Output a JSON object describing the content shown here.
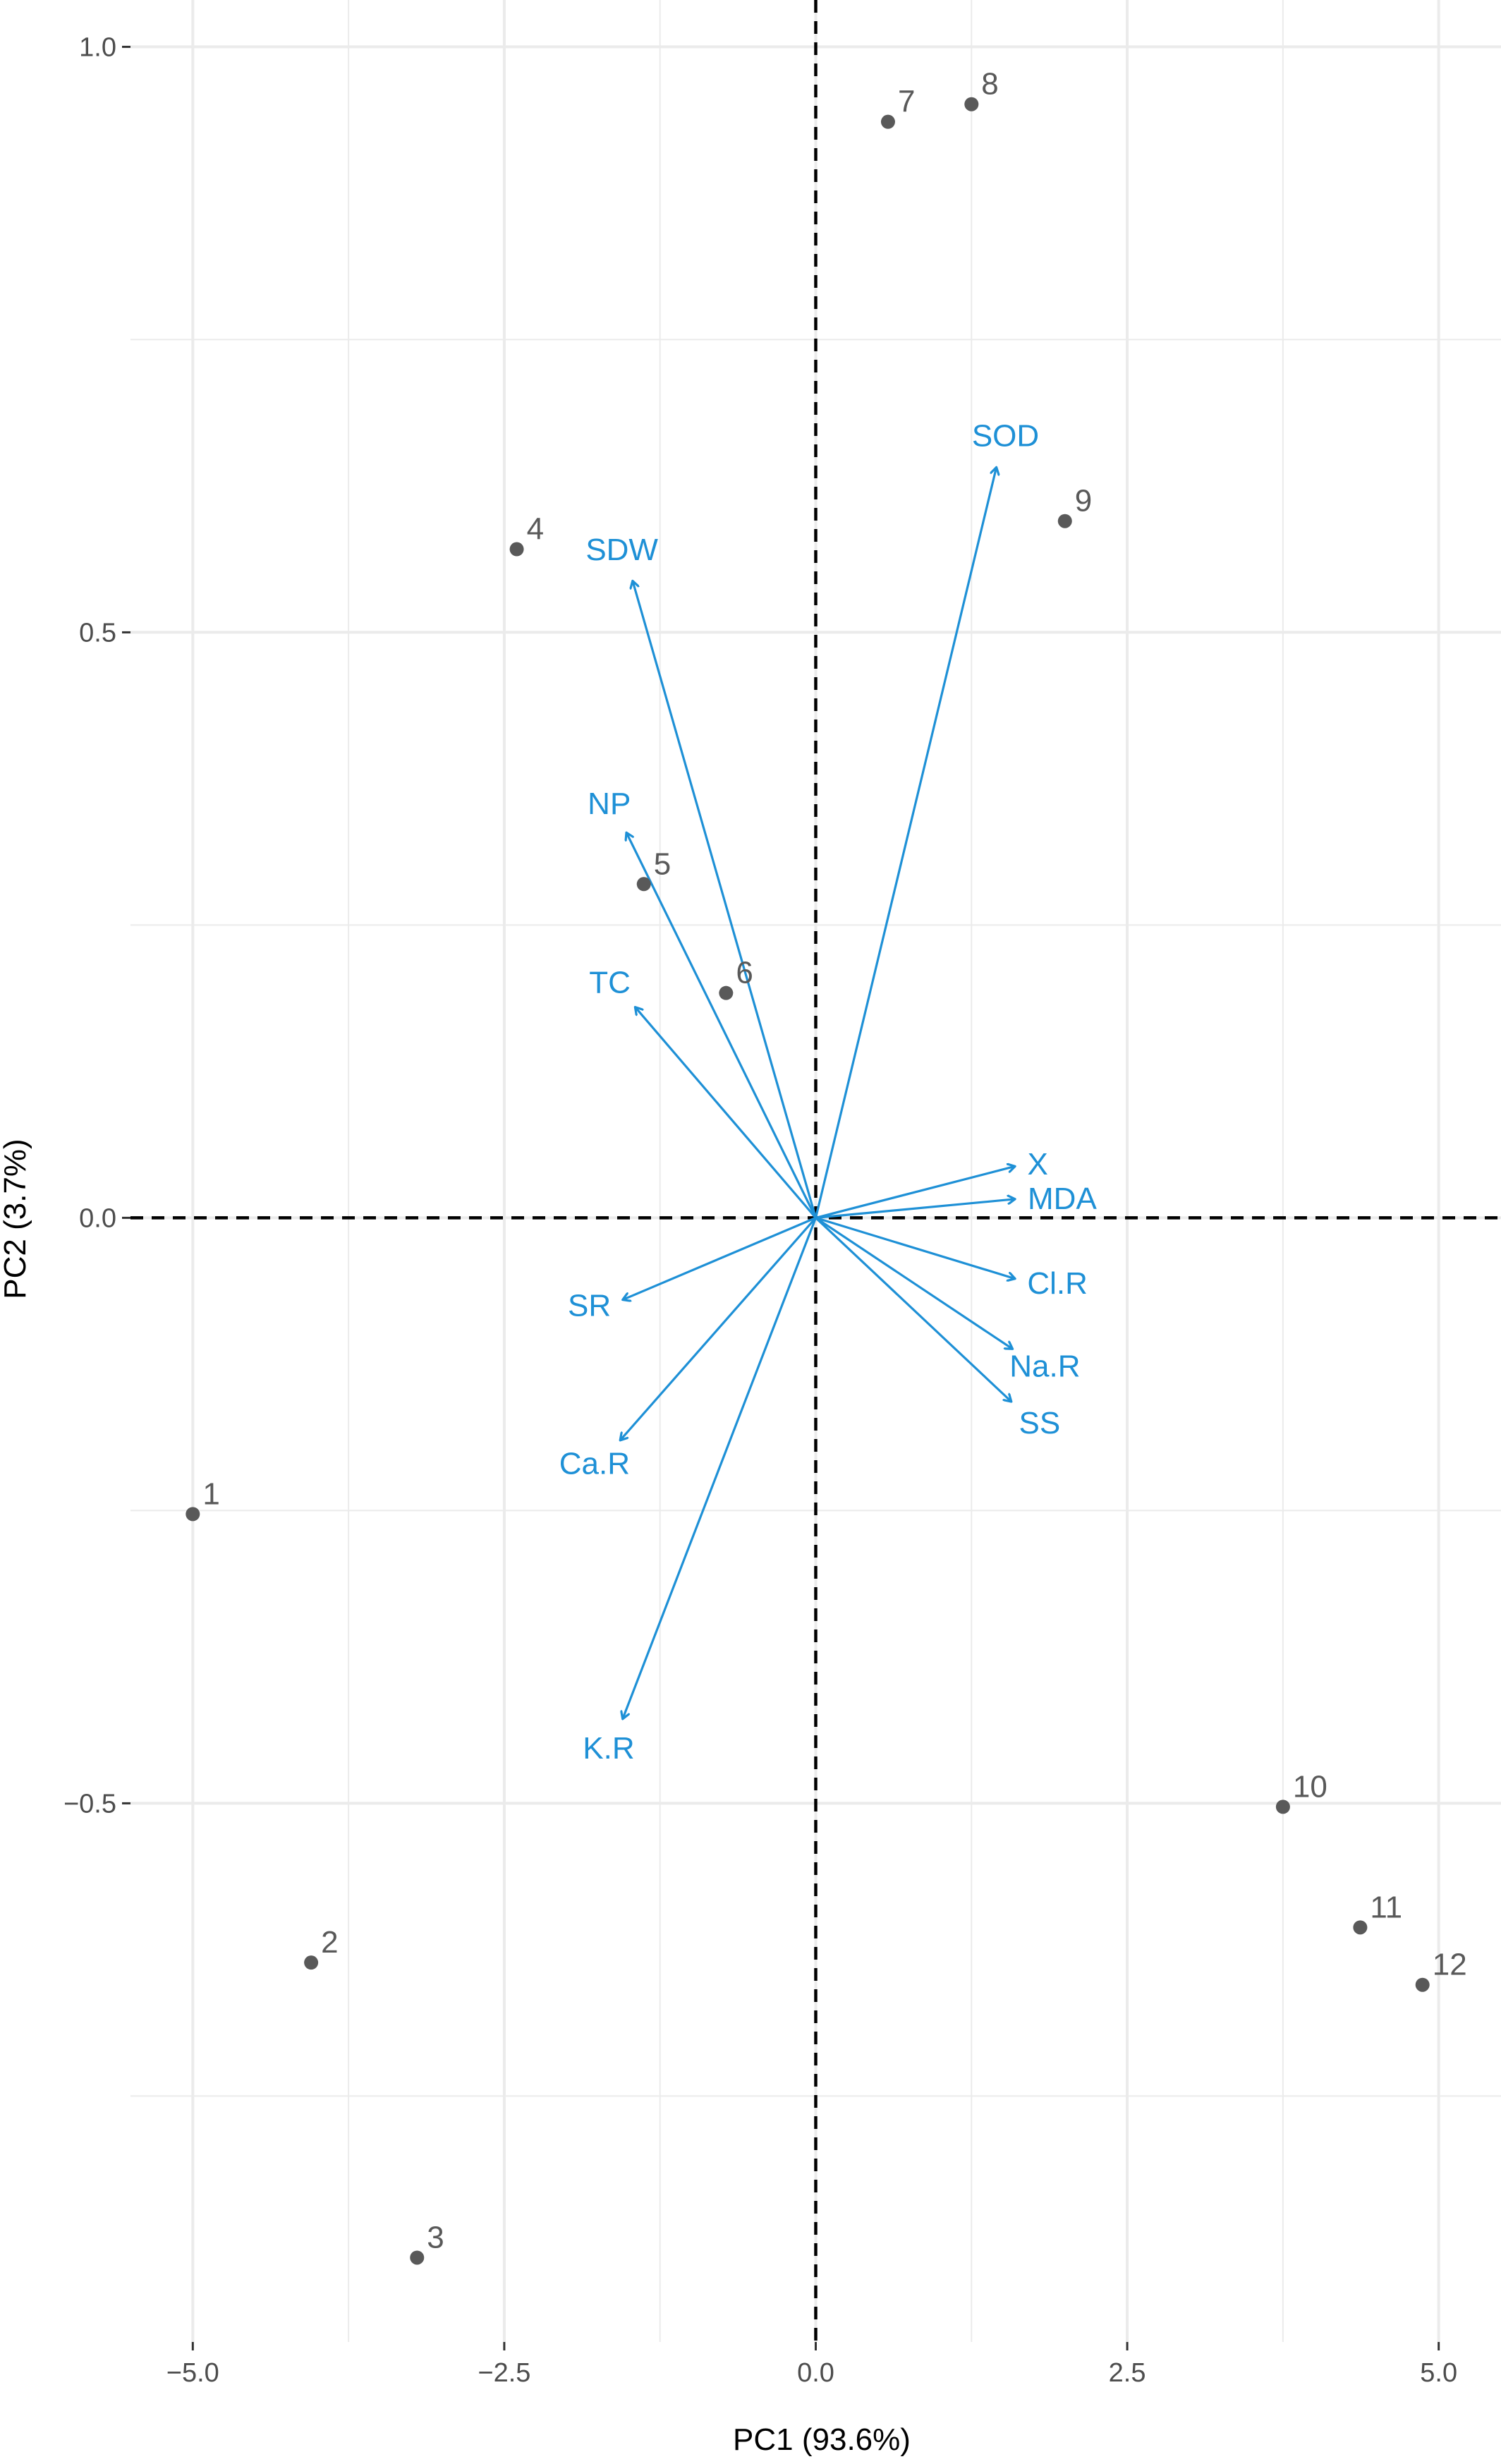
{
  "chart_data": {
    "type": "scatter",
    "subtype": "pca-biplot",
    "title": "",
    "xlabel": "PC1 (93.6%)",
    "ylabel": "PC2 (3.7%)",
    "xlim": [
      -5.5,
      5.5
    ],
    "ylim": [
      -0.96,
      1.04
    ],
    "grid": true,
    "reference_lines": [
      "x = 0 (dashed)",
      "y = 0 (dashed)"
    ],
    "x_ticks": [
      {
        "value": -5.0,
        "label": "−5.0"
      },
      {
        "value": -2.5,
        "label": "−2.5"
      },
      {
        "value": 0.0,
        "label": "0.0"
      },
      {
        "value": 2.5,
        "label": "2.5"
      },
      {
        "value": 5.0,
        "label": "5.0"
      }
    ],
    "y_ticks": [
      {
        "value": 1.0,
        "label": "1.0"
      },
      {
        "value": 0.5,
        "label": "0.5"
      },
      {
        "value": 0.0,
        "label": "0.0"
      },
      {
        "value": -0.5,
        "label": "−0.5"
      }
    ],
    "points": [
      {
        "label": "1",
        "x": -5.0,
        "y": -0.253
      },
      {
        "label": "2",
        "x": -4.05,
        "y": -0.636
      },
      {
        "label": "3",
        "x": -3.2,
        "y": -0.888
      },
      {
        "label": "4",
        "x": -2.4,
        "y": 0.571
      },
      {
        "label": "5",
        "x": -1.38,
        "y": 0.285
      },
      {
        "label": "6",
        "x": -0.72,
        "y": 0.192
      },
      {
        "label": "7",
        "x": 0.58,
        "y": 0.936
      },
      {
        "label": "8",
        "x": 1.25,
        "y": 0.951
      },
      {
        "label": "9",
        "x": 2.0,
        "y": 0.595
      },
      {
        "label": "10",
        "x": 3.75,
        "y": -0.503
      },
      {
        "label": "11",
        "x": 4.37,
        "y": -0.606
      },
      {
        "label": "12",
        "x": 4.87,
        "y": -0.655
      }
    ],
    "loadings": [
      {
        "name": "SDW",
        "x": -1.47,
        "y": 0.544
      },
      {
        "name": "SOD",
        "x": 1.45,
        "y": 0.641
      },
      {
        "name": "NP",
        "x": -1.52,
        "y": 0.329
      },
      {
        "name": "TC",
        "x": -1.45,
        "y": 0.18
      },
      {
        "name": "X",
        "x": 1.6,
        "y": 0.044
      },
      {
        "name": "MDA",
        "x": 1.6,
        "y": 0.016
      },
      {
        "name": "Cl.R",
        "x": 1.6,
        "y": -0.052
      },
      {
        "name": "Na.R",
        "x": 1.58,
        "y": -0.112
      },
      {
        "name": "SS",
        "x": 1.57,
        "y": -0.157
      },
      {
        "name": "SR",
        "x": -1.55,
        "y": -0.07
      },
      {
        "name": "Ca.R",
        "x": -1.57,
        "y": -0.19
      },
      {
        "name": "K.R",
        "x": -1.55,
        "y": -0.428
      }
    ],
    "colors": {
      "points": "#595959",
      "loadings": "#1e90d6",
      "grid": "#ebebeb",
      "reference_lines": "#000000",
      "axis_text": "#4d4d4d",
      "axis_title": "#000000"
    }
  }
}
